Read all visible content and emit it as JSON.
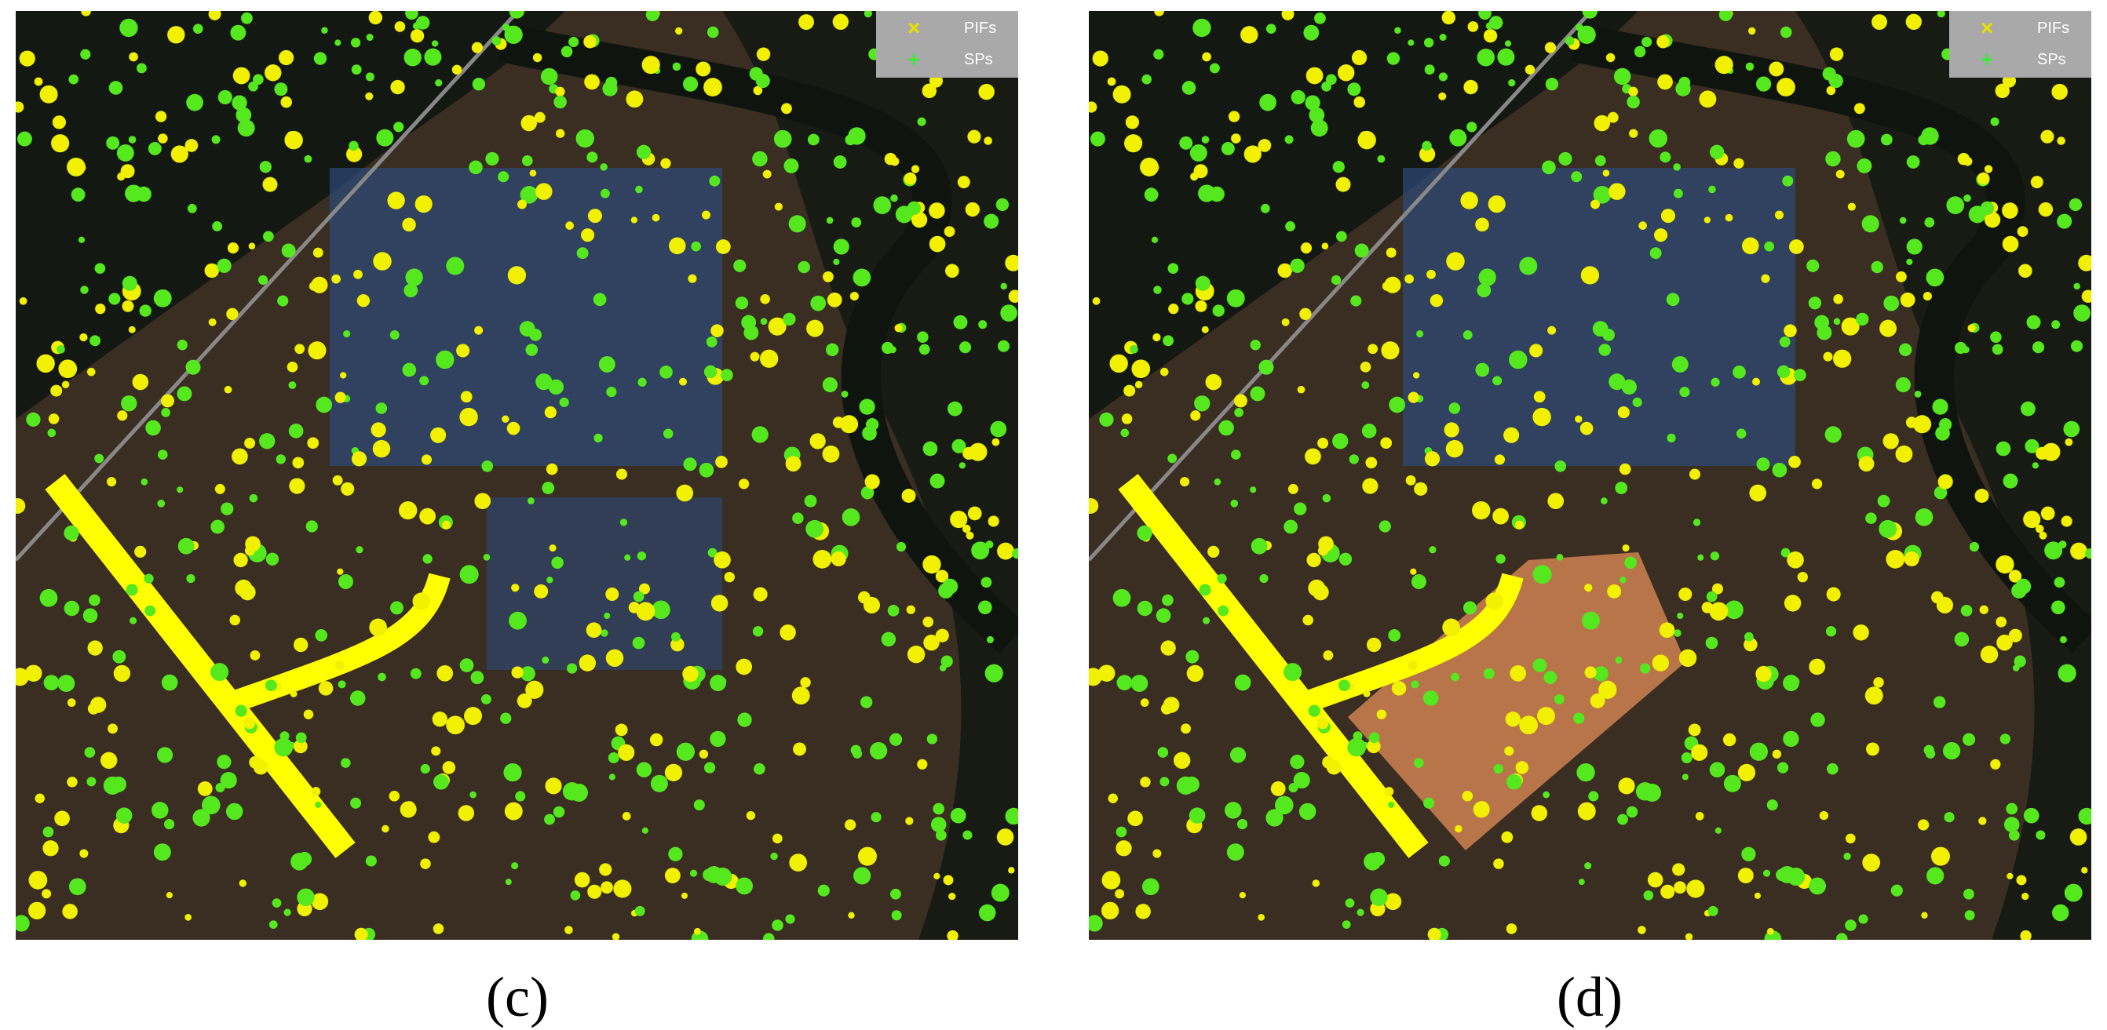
{
  "panels": [
    {
      "label": "(c)",
      "legend": [
        {
          "name": "PIFs"
        },
        {
          "name": "SPs"
        }
      ]
    },
    {
      "label": "(d)",
      "legend": [
        {
          "name": "PIFs"
        },
        {
          "name": "SPs"
        }
      ]
    }
  ]
}
